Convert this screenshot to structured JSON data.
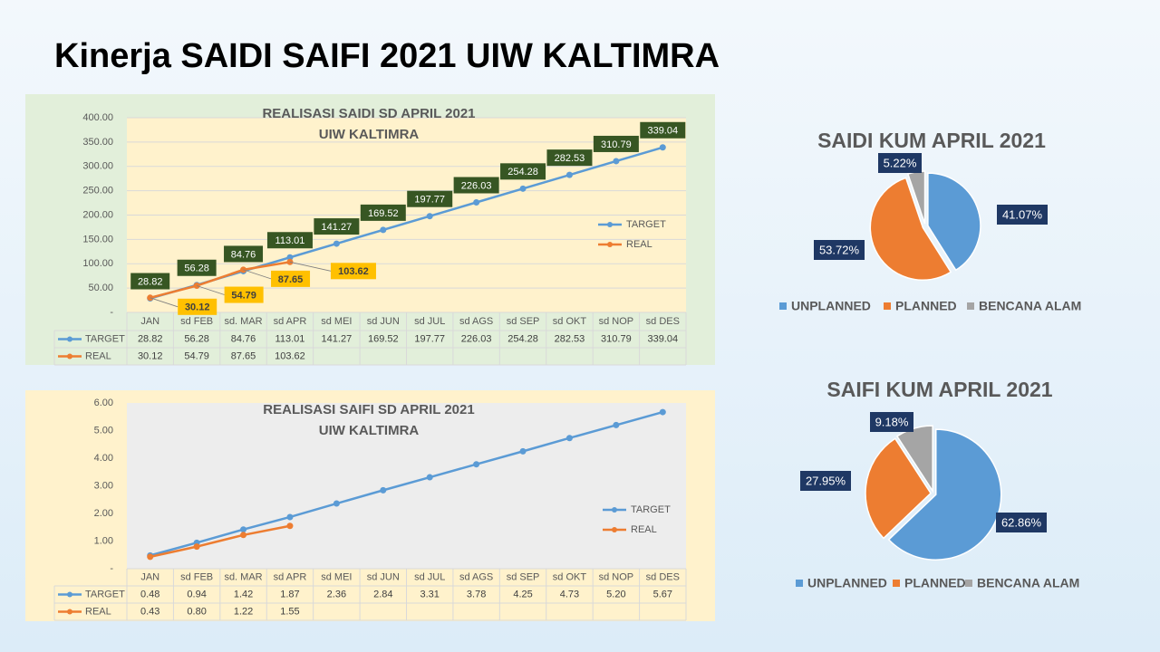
{
  "title": "Kinerja SAIDI SAIFI 2021 UIW KALTIMRA",
  "chart_data": [
    {
      "type": "line",
      "title": "REALISASI SAIDI SD APRIL 2021",
      "subtitle": "UIW KALTIMRA",
      "categories": [
        "JAN",
        "sd FEB",
        "sd. MAR",
        "sd APR",
        "sd MEI",
        "sd JUN",
        "sd JUL",
        "sd AGS",
        "sd SEP",
        "sd OKT",
        "sd NOP",
        "sd DES"
      ],
      "series": [
        {
          "name": "TARGET",
          "color": "#5b9bd5",
          "values": [
            28.82,
            56.28,
            84.76,
            113.01,
            141.27,
            169.52,
            197.77,
            226.03,
            254.28,
            282.53,
            310.79,
            339.04
          ]
        },
        {
          "name": "REAL",
          "color": "#ed7d31",
          "values": [
            30.12,
            54.79,
            87.65,
            103.62,
            null,
            null,
            null,
            null,
            null,
            null,
            null,
            null
          ]
        }
      ],
      "ylim": [
        0,
        400
      ],
      "yticks": [
        {
          "value": 0,
          "label": "-"
        },
        {
          "value": 50,
          "label": "50.00"
        },
        {
          "value": 100,
          "label": "100.00"
        },
        {
          "value": 150,
          "label": "150.00"
        },
        {
          "value": 200,
          "label": "200.00"
        },
        {
          "value": 250,
          "label": "250.00"
        },
        {
          "value": 300,
          "label": "300.00"
        },
        {
          "value": 350,
          "label": "350.00"
        },
        {
          "value": 400,
          "label": "400.00"
        }
      ],
      "grid": true,
      "legend": "right",
      "data_labels": true,
      "data_table": true
    },
    {
      "type": "line",
      "title": "REALISASI SAIFI SD APRIL 2021",
      "subtitle": "UIW KALTIMRA",
      "categories": [
        "JAN",
        "sd FEB",
        "sd. MAR",
        "sd APR",
        "sd MEI",
        "sd JUN",
        "sd JUL",
        "sd AGS",
        "sd SEP",
        "sd OKT",
        "sd NOP",
        "sd DES"
      ],
      "series": [
        {
          "name": "TARGET",
          "color": "#5b9bd5",
          "values": [
            0.48,
            0.94,
            1.42,
            1.87,
            2.36,
            2.84,
            3.31,
            3.78,
            4.25,
            4.73,
            5.2,
            5.67
          ],
          "value_labels": [
            "0.48",
            "0.94",
            "1.42",
            "1.87",
            "2.36",
            "2.84",
            "3.31",
            "3.78",
            "4.25",
            "4.73",
            "5.20",
            "5.67"
          ]
        },
        {
          "name": "REAL",
          "color": "#ed7d31",
          "values": [
            0.43,
            0.8,
            1.22,
            1.55,
            null,
            null,
            null,
            null,
            null,
            null,
            null,
            null
          ],
          "value_labels": [
            "0.43",
            "0.80",
            "1.22",
            "1.55",
            null,
            null,
            null,
            null,
            null,
            null,
            null,
            null
          ]
        }
      ],
      "ylim": [
        0,
        6
      ],
      "yticks": [
        {
          "value": 0,
          "label": "-"
        },
        {
          "value": 1,
          "label": "1.00"
        },
        {
          "value": 2,
          "label": "2.00"
        },
        {
          "value": 3,
          "label": "3.00"
        },
        {
          "value": 4,
          "label": "4.00"
        },
        {
          "value": 5,
          "label": "5.00"
        },
        {
          "value": 6,
          "label": "6.00"
        }
      ],
      "grid": false,
      "legend": "right",
      "data_labels": false,
      "data_table": true
    },
    {
      "type": "pie",
      "title": "SAIDI KUM APRIL 2021",
      "categories": [
        "UNPLANNED",
        "PLANNED",
        "BENCANA ALAM"
      ],
      "values": [
        41.07,
        53.72,
        5.22
      ],
      "value_labels": [
        "41.07%",
        "53.72%",
        "5.22%"
      ],
      "colors": [
        "#5b9bd5",
        "#ed7d31",
        "#a5a5a5"
      ],
      "legend": "bottom"
    },
    {
      "type": "pie",
      "title": "SAIFI KUM APRIL 2021",
      "categories": [
        "UNPLANNED",
        "PLANNED",
        "BENCANA ALAM"
      ],
      "values": [
        62.86,
        27.95,
        9.18
      ],
      "value_labels": [
        "62.86%",
        "27.95%",
        "9.18%"
      ],
      "colors": [
        "#5b9bd5",
        "#ed7d31",
        "#a5a5a5"
      ],
      "legend": "bottom"
    }
  ]
}
